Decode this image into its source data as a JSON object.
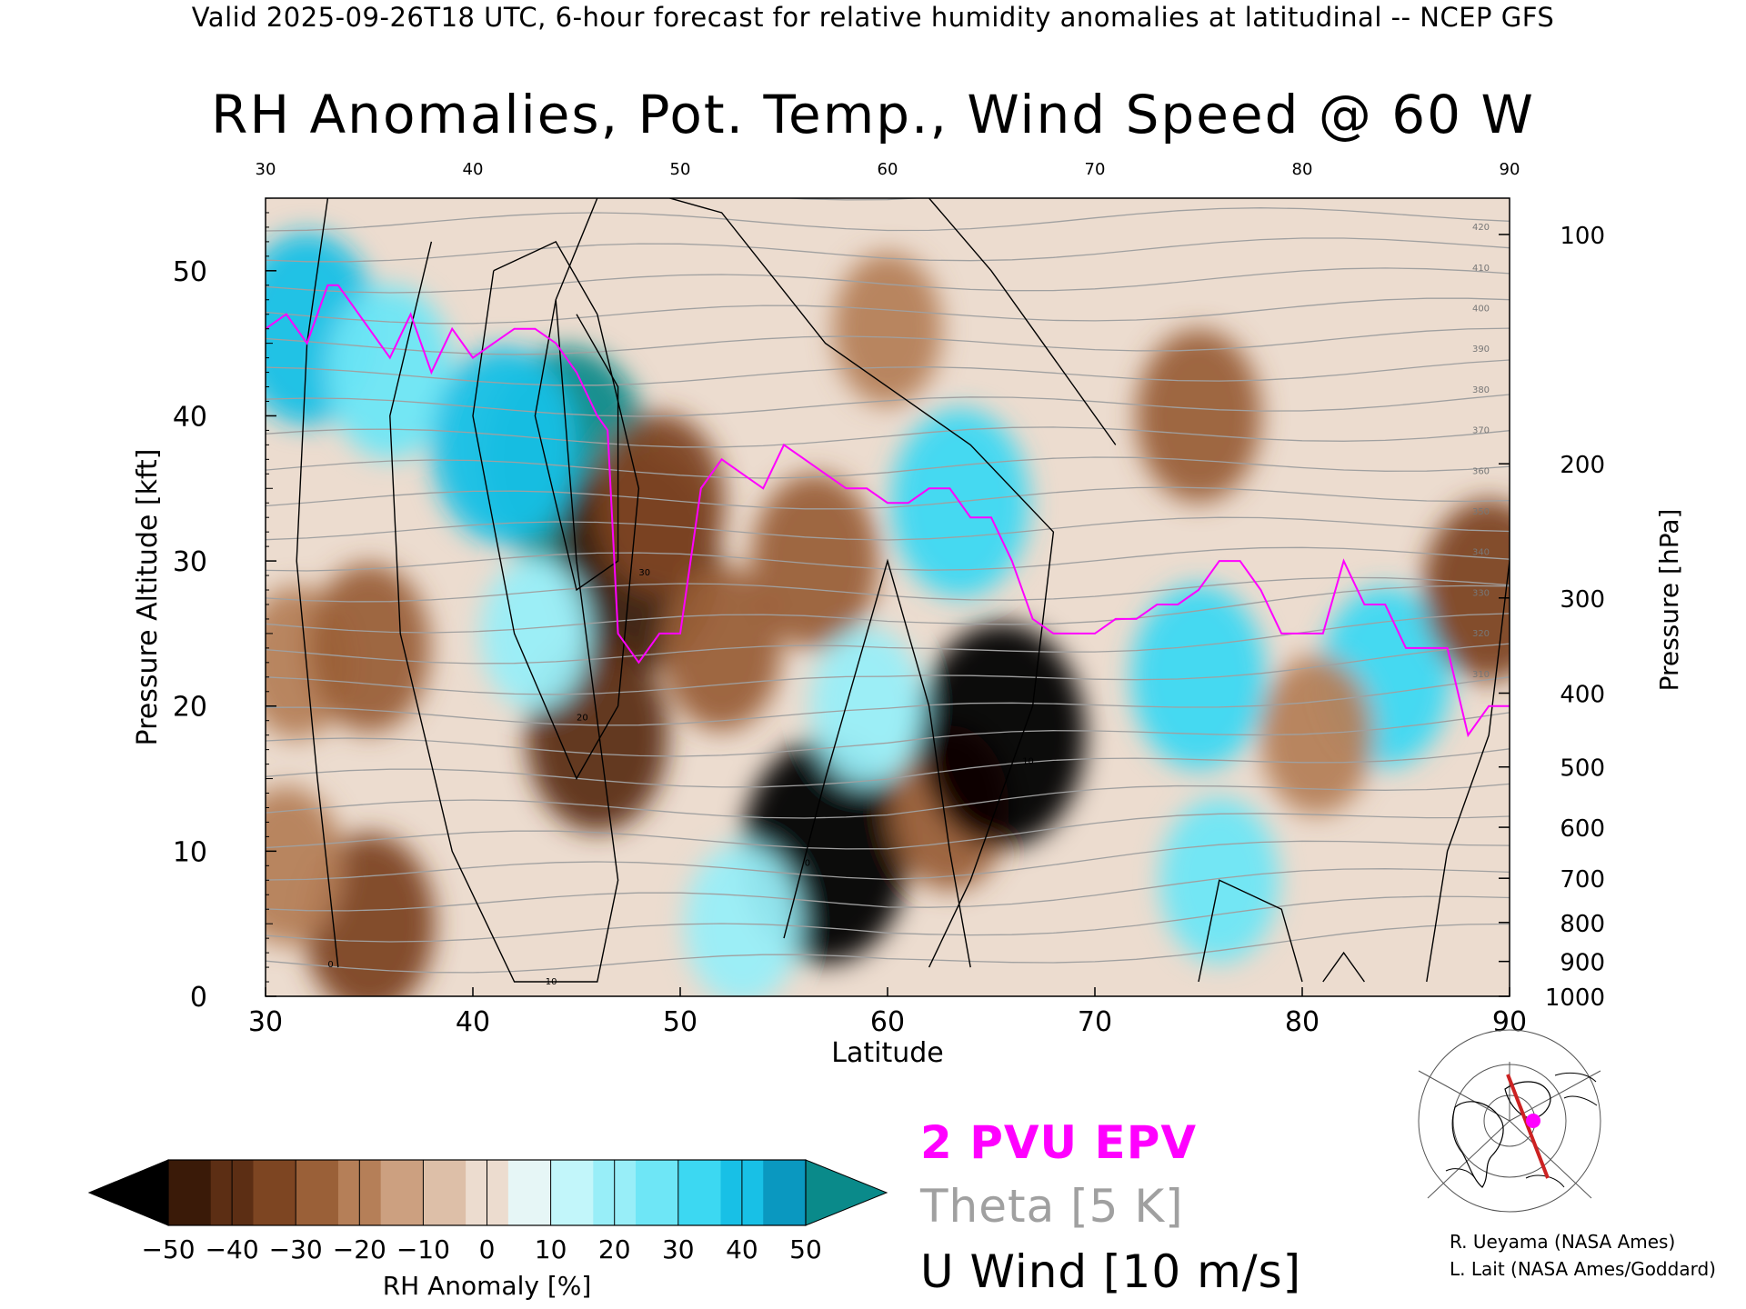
{
  "header": "Valid 2025-09-26T18 UTC, 6-hour forecast for relative humidity anomalies at latitudinal -- NCEP GFS",
  "title": "RH Anomalies, Pot. Temp., Wind Speed @ 60 W",
  "credits": [
    "R. Ueyama (NASA Ames)",
    "L. Lait (NASA Ames/Goddard)"
  ],
  "legend": {
    "epv": "2 PVU EPV",
    "theta": "Theta [5 K]",
    "uwind": "U Wind [10 m/s]"
  },
  "colors": {
    "epv": "#ff00ff",
    "theta": "#a0a0a0",
    "wind": "#000000",
    "section_marker": "#ff00ff",
    "section_line": "#cc2222"
  },
  "chart_data": {
    "type": "heatmap",
    "xlabel": "Latitude",
    "ylabel_left": "Pressure Altitude [kft]",
    "ylabel_right": "Pressure [hPa]",
    "xlim": [
      30,
      90
    ],
    "ylim": [
      0,
      55
    ],
    "x_ticks": [
      30,
      40,
      50,
      60,
      70,
      80,
      90
    ],
    "top_ticks": [
      30,
      40,
      50,
      60,
      70,
      80,
      90
    ],
    "y_ticks": [
      0,
      10,
      20,
      30,
      40,
      50
    ],
    "pressure_ticks": [
      1000,
      900,
      800,
      700,
      600,
      500,
      400,
      300,
      200,
      100
    ],
    "colorbar": {
      "label": "RH Anomaly [%]",
      "ticks": [
        -50,
        -40,
        -30,
        -20,
        -10,
        0,
        10,
        20,
        30,
        40,
        50
      ],
      "colors": [
        "#000000",
        "#3a1a08",
        "#5c2e14",
        "#7d4522",
        "#9a6038",
        "#b57f58",
        "#cca080",
        "#ddbfa8",
        "#ecdccf",
        "#e6f6f6",
        "#c2f6fa",
        "#98eef8",
        "#6ee6f6",
        "#3cd8f2",
        "#18c0e6",
        "#0a98c0",
        "#0a8a8a"
      ]
    },
    "rh_anomaly_features": [
      {
        "lat": 31.5,
        "kft": 23,
        "value": -22
      },
      {
        "lat": 35,
        "kft": 24,
        "value": -30
      },
      {
        "lat": 35,
        "kft": 5,
        "value": -36
      },
      {
        "lat": 31,
        "kft": 9,
        "value": -25
      },
      {
        "lat": 32,
        "kft": 46,
        "value": 42
      },
      {
        "lat": 36,
        "kft": 43,
        "value": 32
      },
      {
        "lat": 44.5,
        "kft": 37,
        "value": 58
      },
      {
        "lat": 41.5,
        "kft": 38,
        "value": 44
      },
      {
        "lat": 48,
        "kft": 30,
        "value": -55
      },
      {
        "lat": 49,
        "kft": 34,
        "value": -35
      },
      {
        "lat": 46,
        "kft": 18,
        "value": -42
      },
      {
        "lat": 43,
        "kft": 25,
        "value": 22
      },
      {
        "lat": 52,
        "kft": 24,
        "value": -28
      },
      {
        "lat": 56.5,
        "kft": 30,
        "value": -33
      },
      {
        "lat": 57,
        "kft": 10,
        "value": -58
      },
      {
        "lat": 63,
        "kft": 13,
        "value": -28
      },
      {
        "lat": 65.5,
        "kft": 18,
        "value": -58
      },
      {
        "lat": 63.5,
        "kft": 34,
        "value": 40
      },
      {
        "lat": 59,
        "kft": 20,
        "value": 24
      },
      {
        "lat": 53,
        "kft": 5,
        "value": 26
      },
      {
        "lat": 75,
        "kft": 22,
        "value": 38
      },
      {
        "lat": 84,
        "kft": 22,
        "value": 36
      },
      {
        "lat": 76,
        "kft": 8,
        "value": 28
      },
      {
        "lat": 80.7,
        "kft": 18,
        "value": -25
      },
      {
        "lat": 60,
        "kft": 46,
        "value": -22
      },
      {
        "lat": 75,
        "kft": 40,
        "value": -32
      },
      {
        "lat": 89,
        "kft": 28,
        "value": -36
      }
    ],
    "theta_label_values": [
      310,
      320,
      330,
      340,
      350,
      360,
      370,
      380,
      390,
      400,
      410,
      420
    ],
    "u_wind_label_values": [
      0,
      10,
      20,
      30
    ],
    "epv_2pvu": {
      "lat": [
        30,
        31,
        32,
        33,
        33.5,
        34,
        35,
        36,
        37,
        38,
        39,
        40,
        41,
        42,
        43,
        44,
        45,
        46,
        46.5,
        47,
        48,
        49,
        50,
        51,
        52,
        53,
        54,
        55,
        56,
        57,
        58,
        59,
        60,
        61,
        62,
        63,
        64,
        65,
        66,
        67,
        68,
        69,
        70,
        71,
        72,
        73,
        74,
        75,
        76,
        77,
        78,
        79,
        80,
        81,
        82,
        83,
        84,
        85,
        86,
        87,
        88,
        89,
        90
      ],
      "kft": [
        46,
        47,
        45,
        49,
        49,
        48,
        46,
        44,
        47,
        43,
        46,
        44,
        45,
        46,
        46,
        45,
        43,
        40,
        39,
        25,
        23,
        25,
        25,
        35,
        37,
        36,
        35,
        38,
        37,
        36,
        35,
        35,
        34,
        34,
        35,
        35,
        33,
        33,
        30,
        26,
        25,
        25,
        25,
        26,
        26,
        27,
        27,
        28,
        30,
        30,
        28,
        25,
        25,
        25,
        30,
        27,
        27,
        24,
        24,
        24,
        18,
        20,
        20
      ]
    }
  }
}
